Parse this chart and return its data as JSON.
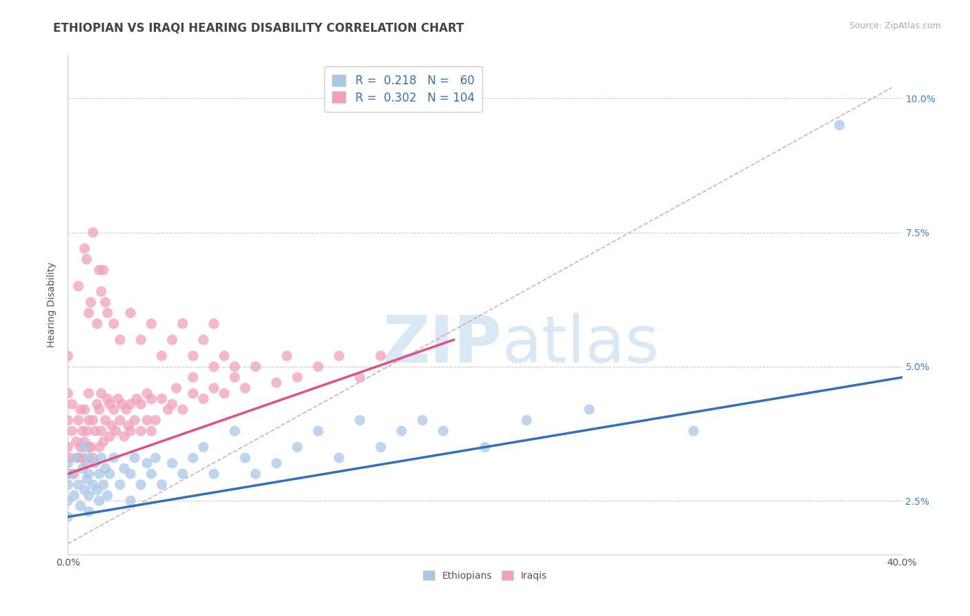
{
  "title": "ETHIOPIAN VS IRAQI HEARING DISABILITY CORRELATION CHART",
  "source": "Source: ZipAtlas.com",
  "y_label_text": "Hearing Disability",
  "xlim": [
    0.0,
    0.4
  ],
  "ylim": [
    0.015,
    0.108
  ],
  "x_tick_positions": [
    0.0,
    0.08,
    0.16,
    0.24,
    0.32,
    0.4
  ],
  "x_tick_labels": [
    "0.0%",
    "",
    "",
    "",
    "",
    "40.0%"
  ],
  "y_tick_positions": [
    0.025,
    0.05,
    0.075,
    0.1
  ],
  "y_tick_labels": [
    "2.5%",
    "5.0%",
    "7.5%",
    "10.0%"
  ],
  "legend_R1": "R =  0.218",
  "legend_N1": "N =   60",
  "legend_R2": "R =  0.302",
  "legend_N2": "N = 104",
  "blue_scatter_color": "#A8C8E8",
  "pink_scatter_color": "#F0A0B8",
  "blue_line_color": "#3070B8",
  "pink_line_color": "#E05080",
  "dashed_line_color": "#D8A0B0",
  "title_color": "#444444",
  "right_tick_color": "#4080C0",
  "watermark_color": "#D8E8F4",
  "background_color": "#FFFFFF",
  "ethiopians_scatter_x": [
    0.0,
    0.0,
    0.0,
    0.0,
    0.002,
    0.003,
    0.004,
    0.005,
    0.006,
    0.007,
    0.008,
    0.008,
    0.009,
    0.01,
    0.01,
    0.01,
    0.01,
    0.012,
    0.013,
    0.014,
    0.015,
    0.015,
    0.016,
    0.017,
    0.018,
    0.019,
    0.02,
    0.022,
    0.025,
    0.027,
    0.03,
    0.03,
    0.032,
    0.035,
    0.038,
    0.04,
    0.042,
    0.045,
    0.05,
    0.055,
    0.06,
    0.065,
    0.07,
    0.08,
    0.085,
    0.09,
    0.1,
    0.11,
    0.12,
    0.13,
    0.14,
    0.15,
    0.16,
    0.17,
    0.18,
    0.2,
    0.22,
    0.25,
    0.3,
    0.37
  ],
  "ethiopians_scatter_y": [
    0.028,
    0.025,
    0.032,
    0.022,
    0.03,
    0.026,
    0.033,
    0.028,
    0.024,
    0.031,
    0.027,
    0.035,
    0.029,
    0.033,
    0.026,
    0.03,
    0.023,
    0.028,
    0.032,
    0.027,
    0.03,
    0.025,
    0.033,
    0.028,
    0.031,
    0.026,
    0.03,
    0.033,
    0.028,
    0.031,
    0.025,
    0.03,
    0.033,
    0.028,
    0.032,
    0.03,
    0.033,
    0.028,
    0.032,
    0.03,
    0.033,
    0.035,
    0.03,
    0.038,
    0.033,
    0.03,
    0.032,
    0.035,
    0.038,
    0.033,
    0.04,
    0.035,
    0.038,
    0.04,
    0.038,
    0.035,
    0.04,
    0.042,
    0.038,
    0.095
  ],
  "iraqis_scatter_x": [
    0.0,
    0.0,
    0.0,
    0.0,
    0.0,
    0.001,
    0.002,
    0.002,
    0.003,
    0.004,
    0.005,
    0.005,
    0.006,
    0.006,
    0.007,
    0.007,
    0.008,
    0.008,
    0.009,
    0.009,
    0.01,
    0.01,
    0.01,
    0.011,
    0.012,
    0.012,
    0.013,
    0.014,
    0.015,
    0.015,
    0.016,
    0.016,
    0.017,
    0.018,
    0.019,
    0.02,
    0.02,
    0.021,
    0.022,
    0.023,
    0.024,
    0.025,
    0.026,
    0.027,
    0.028,
    0.029,
    0.03,
    0.03,
    0.032,
    0.033,
    0.035,
    0.035,
    0.038,
    0.038,
    0.04,
    0.04,
    0.042,
    0.045,
    0.048,
    0.05,
    0.052,
    0.055,
    0.06,
    0.06,
    0.065,
    0.07,
    0.07,
    0.075,
    0.08,
    0.085,
    0.09,
    0.1,
    0.105,
    0.11,
    0.12,
    0.13,
    0.14,
    0.15,
    0.005,
    0.008,
    0.01,
    0.012,
    0.015,
    0.018,
    0.022,
    0.025,
    0.03,
    0.035,
    0.04,
    0.045,
    0.05,
    0.055,
    0.06,
    0.065,
    0.07,
    0.075,
    0.08,
    0.009,
    0.011,
    0.014,
    0.016,
    0.017,
    0.019
  ],
  "iraqis_scatter_y": [
    0.03,
    0.035,
    0.04,
    0.045,
    0.052,
    0.033,
    0.038,
    0.043,
    0.03,
    0.036,
    0.033,
    0.04,
    0.035,
    0.042,
    0.033,
    0.038,
    0.036,
    0.042,
    0.032,
    0.038,
    0.035,
    0.04,
    0.045,
    0.035,
    0.033,
    0.04,
    0.038,
    0.043,
    0.035,
    0.042,
    0.038,
    0.045,
    0.036,
    0.04,
    0.044,
    0.037,
    0.043,
    0.039,
    0.042,
    0.038,
    0.044,
    0.04,
    0.043,
    0.037,
    0.042,
    0.039,
    0.038,
    0.043,
    0.04,
    0.044,
    0.038,
    0.043,
    0.04,
    0.045,
    0.038,
    0.044,
    0.04,
    0.044,
    0.042,
    0.043,
    0.046,
    0.042,
    0.045,
    0.048,
    0.044,
    0.046,
    0.05,
    0.045,
    0.048,
    0.046,
    0.05,
    0.047,
    0.052,
    0.048,
    0.05,
    0.052,
    0.048,
    0.052,
    0.065,
    0.072,
    0.06,
    0.075,
    0.068,
    0.062,
    0.058,
    0.055,
    0.06,
    0.055,
    0.058,
    0.052,
    0.055,
    0.058,
    0.052,
    0.055,
    0.058,
    0.052,
    0.05,
    0.07,
    0.062,
    0.058,
    0.064,
    0.068,
    0.06
  ],
  "blue_regression": [
    0.0,
    0.4,
    0.022,
    0.048
  ],
  "pink_regression": [
    0.0,
    0.185,
    0.03,
    0.055
  ],
  "dashed_regression": [
    0.0,
    0.395,
    0.017,
    0.102
  ],
  "title_fontsize": 12,
  "source_fontsize": 9,
  "label_fontsize": 10,
  "tick_fontsize": 10,
  "legend_fontsize": 12
}
